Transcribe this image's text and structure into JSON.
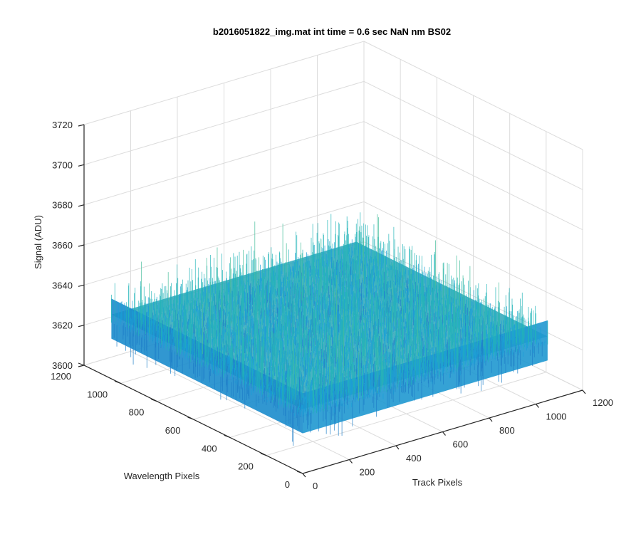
{
  "chart_data": {
    "type": "surface",
    "title": "b2016051822_img.mat int time = 0.6 sec  NaN nm BS02",
    "xlabel": "Track Pixels",
    "ylabel": "Wavelength Pixels",
    "zlabel": "Signal (ADU)",
    "xlim": [
      0,
      1200
    ],
    "ylim": [
      0,
      1200
    ],
    "zlim": [
      3600,
      3720
    ],
    "x_ticks": [
      "0",
      "200",
      "400",
      "600",
      "800",
      "1000",
      "1200"
    ],
    "y_ticks": [
      "0",
      "200",
      "400",
      "600",
      "800",
      "1000",
      "1200"
    ],
    "z_ticks": [
      "3600",
      "3620",
      "3640",
      "3660",
      "3680",
      "3700",
      "3720"
    ],
    "surface": {
      "x_range": [
        0,
        1050
      ],
      "y_range": [
        0,
        1050
      ],
      "mean_signal": 3632,
      "noise_range": [
        3606,
        3705
      ],
      "colormap": [
        "#1f7fc8",
        "#1aa0d8",
        "#22b4b8",
        "#43bd9a",
        "#8ec85a",
        "#d8d22c"
      ]
    },
    "grid": true
  }
}
